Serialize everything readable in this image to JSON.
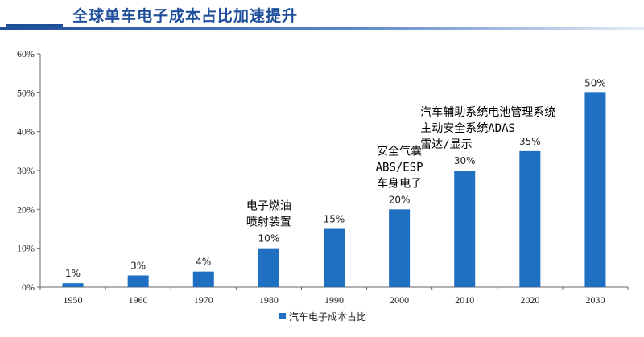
{
  "header": {
    "title": "全球单车电子成本占比加速提升"
  },
  "colors": {
    "bar": "#1f6fc2",
    "title": "#1f4e9a",
    "axis": "#666666"
  },
  "chart_data": {
    "type": "bar",
    "title": "",
    "xlabel": "",
    "ylabel": "",
    "categories": [
      "1950",
      "1960",
      "1970",
      "1980",
      "1990",
      "2000",
      "2010",
      "2020",
      "2030"
    ],
    "series": [
      {
        "name": "汽车电子成本占比",
        "values": [
          1,
          3,
          4,
          10,
          15,
          20,
          30,
          35,
          50
        ]
      }
    ],
    "data_labels": [
      "1%",
      "3%",
      "4%",
      "10%",
      "15%",
      "20%",
      "30%",
      "35%",
      "50%"
    ],
    "ylim": [
      0,
      60
    ],
    "yticks": [
      "0%",
      "10%",
      "20%",
      "30%",
      "40%",
      "50%",
      "60%"
    ],
    "legend": "bottom",
    "annotations": [
      {
        "category": "1980",
        "lines": [
          "电子燃油",
          "喷射装置"
        ]
      },
      {
        "category": "2000",
        "lines": [
          "安全气囊",
          "ABS/ESP",
          "车身电子"
        ]
      },
      {
        "category": "2010",
        "lines": [
          "汽车辅助系统电池管理系统",
          "主动安全系统ADAS",
          "雷达/显示"
        ]
      }
    ]
  }
}
